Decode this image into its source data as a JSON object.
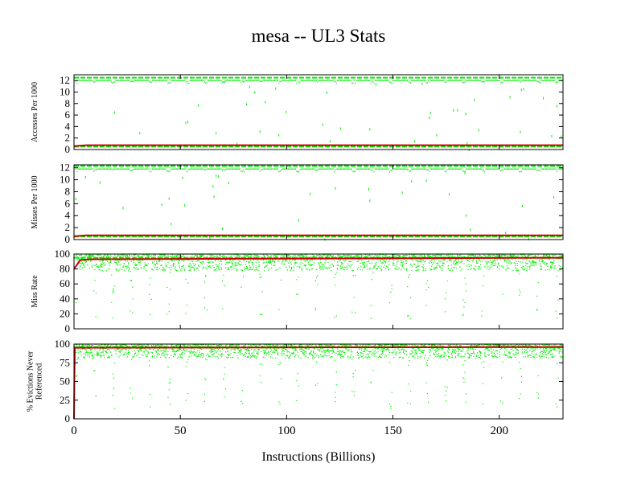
{
  "chart_data": {
    "title": "mesa -- UL3  Stats",
    "type": "scatter",
    "xlabel": "Instructions (Billions)",
    "xlim": [
      0,
      230
    ],
    "xticks": [
      0,
      50,
      100,
      150,
      200
    ],
    "colors": {
      "points": "#00ee00",
      "average": "#cc0000",
      "axes": "#000000"
    },
    "panels": [
      {
        "name": "accesses",
        "ylabel": [
          "Accesses Per 1000"
        ],
        "ylim": [
          0,
          13
        ],
        "yticks": [
          0,
          2,
          4,
          6,
          8,
          10,
          12
        ],
        "bands": [
          12.5,
          0.5
        ],
        "average": [
          [
            0,
            0.6
          ],
          [
            6,
            0.75
          ],
          [
            230,
            0.75
          ]
        ]
      },
      {
        "name": "misses",
        "ylabel": [
          "Misses Per 1000"
        ],
        "ylim": [
          0,
          12.5
        ],
        "yticks": [
          0,
          2,
          4,
          6,
          8,
          10,
          12
        ],
        "bands": [
          12.3,
          0.5
        ],
        "average": [
          [
            0,
            0.55
          ],
          [
            6,
            0.7
          ],
          [
            230,
            0.7
          ]
        ]
      },
      {
        "name": "miss-rate",
        "ylabel": [
          "Miss Rate"
        ],
        "ylim": [
          0,
          100
        ],
        "yticks": [
          0,
          20,
          40,
          60,
          80,
          100
        ],
        "bands": [
          95
        ],
        "average": [
          [
            0,
            80
          ],
          [
            3,
            92
          ],
          [
            8,
            93
          ],
          [
            230,
            95
          ]
        ]
      },
      {
        "name": "evictions",
        "ylabel": [
          "% Evictions Never",
          "Referenced"
        ],
        "ylim": [
          0,
          100
        ],
        "yticks": [
          0,
          25,
          50,
          75,
          100
        ],
        "bands": [
          96
        ],
        "average": [
          [
            0,
            0
          ],
          [
            0.2,
            55
          ],
          [
            0.4,
            95
          ],
          [
            230,
            96
          ]
        ]
      }
    ]
  }
}
